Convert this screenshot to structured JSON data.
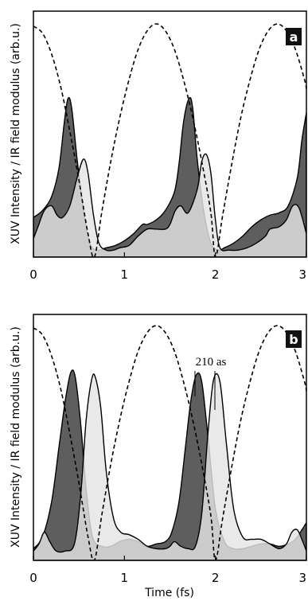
{
  "chart_data": [
    {
      "type": "area",
      "panel_label": "a",
      "xlabel": "",
      "ylabel": "XUV Intensity / IR field modulus (arb.u.)",
      "xlim": [
        0,
        3
      ],
      "ylim": [
        0,
        1
      ],
      "x_ticks": [
        "0",
        "1",
        "2",
        "3"
      ],
      "grid": false,
      "annotations": [],
      "series": [
        {
          "style": "filled-dark",
          "color": "#5e5e5e",
          "x": [
            0,
            0.1,
            0.2,
            0.28,
            0.34,
            0.38,
            0.42,
            0.48,
            0.55,
            0.62,
            0.7,
            0.8,
            0.9,
            1.0,
            1.1,
            1.2,
            1.25,
            1.35,
            1.45,
            1.55,
            1.6,
            1.65,
            1.71,
            1.75,
            1.8,
            1.87,
            1.95,
            2.03,
            2.1,
            2.2,
            2.3,
            2.4,
            2.5,
            2.6,
            2.7,
            2.8,
            2.9,
            2.95,
            3.0
          ],
          "y": [
            0.17,
            0.2,
            0.26,
            0.38,
            0.58,
            0.68,
            0.64,
            0.42,
            0.2,
            0.06,
            0.03,
            0.04,
            0.05,
            0.07,
            0.1,
            0.14,
            0.14,
            0.16,
            0.2,
            0.28,
            0.4,
            0.58,
            0.68,
            0.64,
            0.42,
            0.2,
            0.06,
            0.03,
            0.04,
            0.06,
            0.09,
            0.13,
            0.16,
            0.18,
            0.19,
            0.22,
            0.34,
            0.5,
            0.62
          ]
        },
        {
          "style": "filled-light",
          "color": "#e4e4e4",
          "x": [
            0,
            0.05,
            0.12,
            0.2,
            0.26,
            0.32,
            0.4,
            0.48,
            0.55,
            0.6,
            0.66,
            0.72,
            0.8,
            0.88,
            0.95,
            1.05,
            1.15,
            1.25,
            1.35,
            1.45,
            1.5,
            1.56,
            1.62,
            1.7,
            1.8,
            1.85,
            1.9,
            1.95,
            2.0,
            2.05,
            2.15,
            2.25,
            2.35,
            2.45,
            2.55,
            2.6,
            2.7,
            2.78,
            2.85,
            2.92,
            3.0
          ],
          "y": [
            0.08,
            0.13,
            0.2,
            0.22,
            0.18,
            0.17,
            0.22,
            0.34,
            0.42,
            0.36,
            0.18,
            0.06,
            0.03,
            0.03,
            0.04,
            0.05,
            0.09,
            0.12,
            0.12,
            0.12,
            0.14,
            0.2,
            0.22,
            0.19,
            0.29,
            0.41,
            0.44,
            0.36,
            0.16,
            0.04,
            0.03,
            0.03,
            0.04,
            0.06,
            0.09,
            0.12,
            0.13,
            0.16,
            0.22,
            0.21,
            0.1
          ]
        },
        {
          "style": "dashed",
          "color": "#000000",
          "x": [
            0,
            0.1,
            0.2,
            0.3,
            0.4,
            0.5,
            0.6,
            0.67,
            0.75,
            0.85,
            0.95,
            1.05,
            1.15,
            1.25,
            1.35,
            1.45,
            1.55,
            1.65,
            1.75,
            1.85,
            1.95,
            2.0,
            2.08,
            2.18,
            2.28,
            2.38,
            2.48,
            2.58,
            2.68,
            2.78,
            2.88,
            2.98,
            3.0
          ],
          "y": [
            0.99,
            0.96,
            0.87,
            0.73,
            0.54,
            0.33,
            0.1,
            0.0,
            0.19,
            0.41,
            0.6,
            0.76,
            0.89,
            0.97,
            1.0,
            0.97,
            0.89,
            0.76,
            0.6,
            0.41,
            0.19,
            0.0,
            0.18,
            0.4,
            0.6,
            0.76,
            0.89,
            0.97,
            1.0,
            0.97,
            0.89,
            0.76,
            0.72
          ]
        }
      ]
    },
    {
      "type": "area",
      "panel_label": "b",
      "xlabel": "Time (fs)",
      "ylabel": "XUV Intensity / IR field modulus (arb.u.)",
      "xlim": [
        0,
        3
      ],
      "ylim": [
        0,
        1
      ],
      "x_ticks": [
        "0",
        "1",
        "2",
        "3"
      ],
      "grid": false,
      "annotations": [
        "210 as"
      ],
      "series": [
        {
          "style": "filled-dark",
          "color": "#5e5e5e",
          "x": [
            0,
            0.1,
            0.2,
            0.28,
            0.35,
            0.41,
            0.46,
            0.52,
            0.58,
            0.65,
            0.75,
            0.85,
            0.95,
            1.05,
            1.15,
            1.25,
            1.35,
            1.45,
            1.52,
            1.6,
            1.67,
            1.73,
            1.79,
            1.85,
            1.92,
            2.0,
            2.1,
            2.2,
            2.3,
            2.4,
            2.5,
            2.6,
            2.7,
            2.8,
            2.88,
            2.95,
            3.0
          ],
          "y": [
            0.05,
            0.1,
            0.25,
            0.48,
            0.68,
            0.8,
            0.78,
            0.58,
            0.3,
            0.1,
            0.06,
            0.06,
            0.08,
            0.09,
            0.08,
            0.06,
            0.07,
            0.08,
            0.12,
            0.25,
            0.48,
            0.68,
            0.79,
            0.76,
            0.52,
            0.22,
            0.08,
            0.05,
            0.05,
            0.06,
            0.07,
            0.07,
            0.06,
            0.07,
            0.09,
            0.13,
            0.16
          ]
        },
        {
          "style": "filled-light",
          "color": "#e4e4e4",
          "x": [
            0,
            0.06,
            0.12,
            0.18,
            0.25,
            0.35,
            0.45,
            0.52,
            0.58,
            0.64,
            0.68,
            0.74,
            0.8,
            0.88,
            0.96,
            1.05,
            1.15,
            1.25,
            1.35,
            1.45,
            1.5,
            1.55,
            1.62,
            1.7,
            1.78,
            1.85,
            1.92,
            1.98,
            2.05,
            2.12,
            2.2,
            2.3,
            2.4,
            2.5,
            2.6,
            2.7,
            2.78,
            2.84,
            2.9,
            2.96,
            3.0
          ],
          "y": [
            0.04,
            0.07,
            0.12,
            0.08,
            0.04,
            0.04,
            0.07,
            0.28,
            0.6,
            0.77,
            0.78,
            0.65,
            0.38,
            0.18,
            0.12,
            0.11,
            0.09,
            0.06,
            0.05,
            0.05,
            0.06,
            0.08,
            0.06,
            0.05,
            0.06,
            0.2,
            0.55,
            0.77,
            0.76,
            0.5,
            0.22,
            0.1,
            0.09,
            0.09,
            0.07,
            0.05,
            0.07,
            0.12,
            0.13,
            0.08,
            0.04
          ]
        },
        {
          "style": "dashed",
          "color": "#000000",
          "x": [
            0,
            0.1,
            0.2,
            0.3,
            0.4,
            0.5,
            0.6,
            0.67,
            0.75,
            0.85,
            0.95,
            1.05,
            1.15,
            1.25,
            1.35,
            1.45,
            1.55,
            1.65,
            1.75,
            1.85,
            1.95,
            2.0,
            2.08,
            2.18,
            2.28,
            2.38,
            2.48,
            2.58,
            2.68,
            2.78,
            2.88,
            2.98,
            3.0
          ],
          "y": [
            0.99,
            0.96,
            0.87,
            0.73,
            0.54,
            0.33,
            0.1,
            0.0,
            0.19,
            0.41,
            0.6,
            0.76,
            0.89,
            0.97,
            1.0,
            0.97,
            0.89,
            0.76,
            0.6,
            0.41,
            0.19,
            0.0,
            0.18,
            0.4,
            0.6,
            0.76,
            0.89,
            0.97,
            1.0,
            0.97,
            0.89,
            0.76,
            0.72
          ]
        }
      ]
    }
  ]
}
